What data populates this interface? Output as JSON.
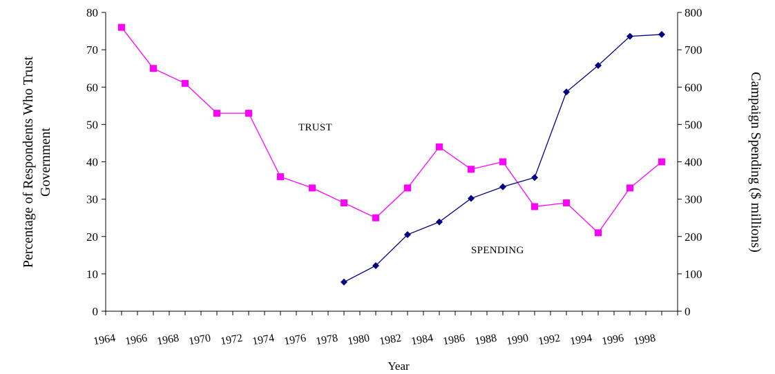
{
  "chart_data": {
    "type": "line",
    "title": "",
    "xlabel": "Year",
    "ylabel_left": [
      "Percentage of Respondents Who Trust",
      "Government"
    ],
    "ylabel_right": "Campaign Spending ($ millions)",
    "x_ticks": [
      "1964",
      "1966",
      "1968",
      "1970",
      "1972",
      "1974",
      "1976",
      "1978",
      "1980",
      "1982",
      "1984",
      "1986",
      "1988",
      "1990",
      "1992",
      "1994",
      "1996",
      "1998"
    ],
    "x_range": [
      1964,
      2000
    ],
    "y_left_ticks": [
      "0",
      "10",
      "20",
      "30",
      "40",
      "50",
      "60",
      "70",
      "80"
    ],
    "y_left_range": [
      0,
      80
    ],
    "y_right_ticks": [
      "0",
      "100",
      "200",
      "300",
      "400",
      "500",
      "600",
      "700",
      "800"
    ],
    "y_right_range": [
      0,
      800
    ],
    "grid": false,
    "legend": "none",
    "annotations": {
      "trust": "TRUST",
      "spending": "SPENDING"
    },
    "series": [
      {
        "key": "trust",
        "axis": "left",
        "color": "#ff00ff",
        "marker": "square",
        "x": [
          1965,
          1967,
          1969,
          1971,
          1973,
          1975,
          1977,
          1979,
          1981,
          1983,
          1985,
          1987,
          1989,
          1991,
          1993,
          1995,
          1997,
          1999
        ],
        "y": [
          76,
          65,
          61,
          53,
          53,
          36,
          33,
          29,
          25,
          33,
          44,
          38,
          40,
          28,
          29,
          21,
          33,
          40
        ]
      },
      {
        "key": "spending",
        "axis": "right",
        "color": "#000080",
        "marker": "diamond",
        "x": [
          1979,
          1981,
          1983,
          1985,
          1987,
          1989,
          1991,
          1993,
          1995,
          1997,
          1999
        ],
        "y": [
          78,
          122,
          205,
          239,
          302,
          333,
          358,
          587,
          658,
          736,
          741
        ]
      }
    ]
  }
}
